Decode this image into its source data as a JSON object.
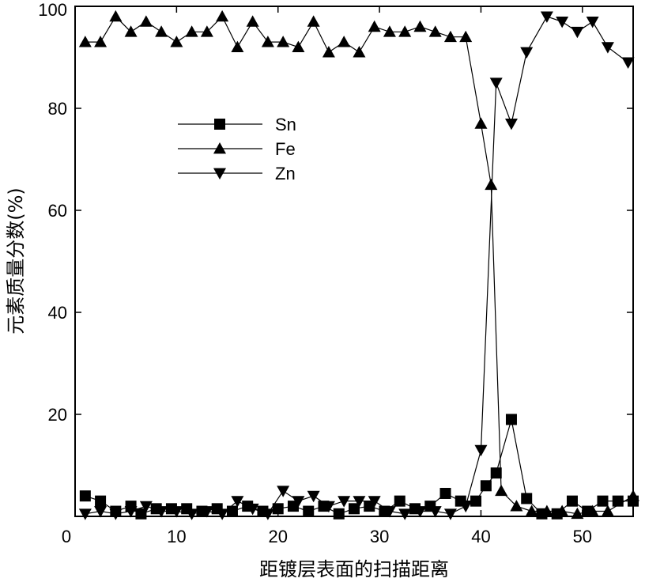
{
  "chart_data": {
    "type": "line",
    "title": "",
    "xlabel": "距镀层表面的扫描距离",
    "ylabel": "元素质量分数(%)",
    "xlim": [
      0,
      55
    ],
    "ylim": [
      0,
      100
    ],
    "xticks": [
      0,
      10,
      20,
      30,
      40,
      50
    ],
    "yticks": [
      20,
      40,
      60,
      80,
      100
    ],
    "legend_position": "upper-left",
    "grid": false,
    "series": [
      {
        "name": "Sn",
        "marker": "square",
        "x": [
          1,
          2.5,
          4,
          5.5,
          6.5,
          8,
          9.5,
          11,
          12.5,
          14,
          15.5,
          17,
          18.5,
          20,
          21.5,
          23,
          24.5,
          26,
          27.5,
          29,
          30.5,
          32,
          33.5,
          35,
          36.5,
          38,
          39.5,
          40.5,
          41.5,
          43,
          44.5,
          46,
          47.5,
          49,
          50.5,
          52,
          53.5,
          55
        ],
        "y": [
          4,
          3,
          1,
          2,
          0.5,
          1.5,
          1.5,
          1.5,
          1,
          1.5,
          1,
          2,
          1,
          1.5,
          2,
          1,
          2,
          0.5,
          1.5,
          2,
          1,
          3,
          1.5,
          2,
          4.5,
          3,
          3,
          6,
          8.5,
          19,
          3.5,
          0.5,
          0.5,
          3,
          1,
          3,
          3,
          3
        ]
      },
      {
        "name": "Fe",
        "marker": "triangle-up",
        "x": [
          1,
          2.5,
          4,
          5.5,
          7,
          8.5,
          10,
          11.5,
          13,
          14.5,
          16,
          17.5,
          19,
          20.5,
          22,
          23.5,
          25,
          26.5,
          28,
          29.5,
          31,
          32.5,
          34,
          35.5,
          37,
          38.5,
          40,
          41,
          42,
          43.5,
          45,
          46.5,
          48,
          49.5,
          51,
          52.5,
          55
        ],
        "y": [
          93,
          93,
          98,
          95,
          97,
          95,
          93,
          95,
          95,
          98,
          92,
          97,
          93,
          93,
          92,
          97,
          91,
          93,
          91,
          96,
          95,
          95,
          96,
          95,
          94,
          94,
          77,
          65,
          5,
          2,
          1,
          1,
          1,
          0.5,
          1,
          1,
          4
        ]
      },
      {
        "name": "Zn",
        "marker": "triangle-down",
        "x": [
          1,
          2.5,
          4,
          5.5,
          7,
          8.5,
          10,
          11.5,
          13,
          14.5,
          16,
          17.5,
          19,
          20.5,
          22,
          23.5,
          25,
          26.5,
          28,
          29.5,
          31,
          32.5,
          34,
          35.5,
          37,
          38.5,
          40,
          41.5,
          43,
          44.5,
          46.5,
          48,
          49.5,
          51,
          52.5,
          54.5
        ],
        "y": [
          0.5,
          1,
          0.5,
          1,
          2,
          1,
          1,
          0.5,
          1,
          0.5,
          3,
          1.5,
          0.5,
          5,
          3,
          4,
          2,
          3,
          3,
          3,
          1,
          0.5,
          1,
          1,
          0.5,
          2,
          13,
          85,
          77,
          91,
          98,
          97,
          95,
          97,
          92,
          89
        ]
      }
    ]
  }
}
